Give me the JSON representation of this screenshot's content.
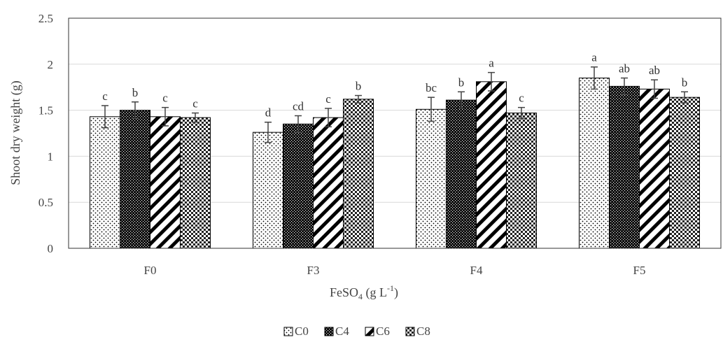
{
  "chart_data": {
    "type": "bar",
    "title": "",
    "ylabel": "Shoot dry weight (g)",
    "xlabel": {
      "main": "FeSO",
      "sub": "4",
      "mid": " (g L",
      "sup": "-1",
      "end": ")"
    },
    "ylim": [
      0,
      2.5
    ],
    "yticks": [
      0,
      0.5,
      1,
      1.5,
      2,
      2.5
    ],
    "ytick_labels": [
      "0",
      "0.5",
      "1",
      "1.5",
      "2",
      "2.5"
    ],
    "grid": true,
    "legend_position": "bottom-center",
    "categories": [
      "F0",
      "F3",
      "F4",
      "F5"
    ],
    "series": [
      {
        "name": "C0",
        "pattern": "dots",
        "values": [
          1.43,
          1.26,
          1.51,
          1.85
        ],
        "errors": [
          0.12,
          0.11,
          0.13,
          0.12
        ],
        "letters": [
          "c",
          "d",
          "bc",
          "a"
        ]
      },
      {
        "name": "C4",
        "pattern": "dense-check",
        "values": [
          1.5,
          1.35,
          1.61,
          1.76
        ],
        "errors": [
          0.09,
          0.09,
          0.09,
          0.09
        ],
        "letters": [
          "b",
          "cd",
          "b",
          "ab"
        ]
      },
      {
        "name": "C6",
        "pattern": "diagonal",
        "values": [
          1.43,
          1.42,
          1.81,
          1.73
        ],
        "errors": [
          0.1,
          0.1,
          0.1,
          0.1
        ],
        "letters": [
          "c",
          "c",
          "a",
          "ab"
        ]
      },
      {
        "name": "C8",
        "pattern": "checker",
        "values": [
          1.42,
          1.62,
          1.47,
          1.64
        ],
        "errors": [
          0.05,
          0.04,
          0.06,
          0.06
        ],
        "letters": [
          "c",
          "b",
          "c",
          "b"
        ]
      }
    ]
  }
}
